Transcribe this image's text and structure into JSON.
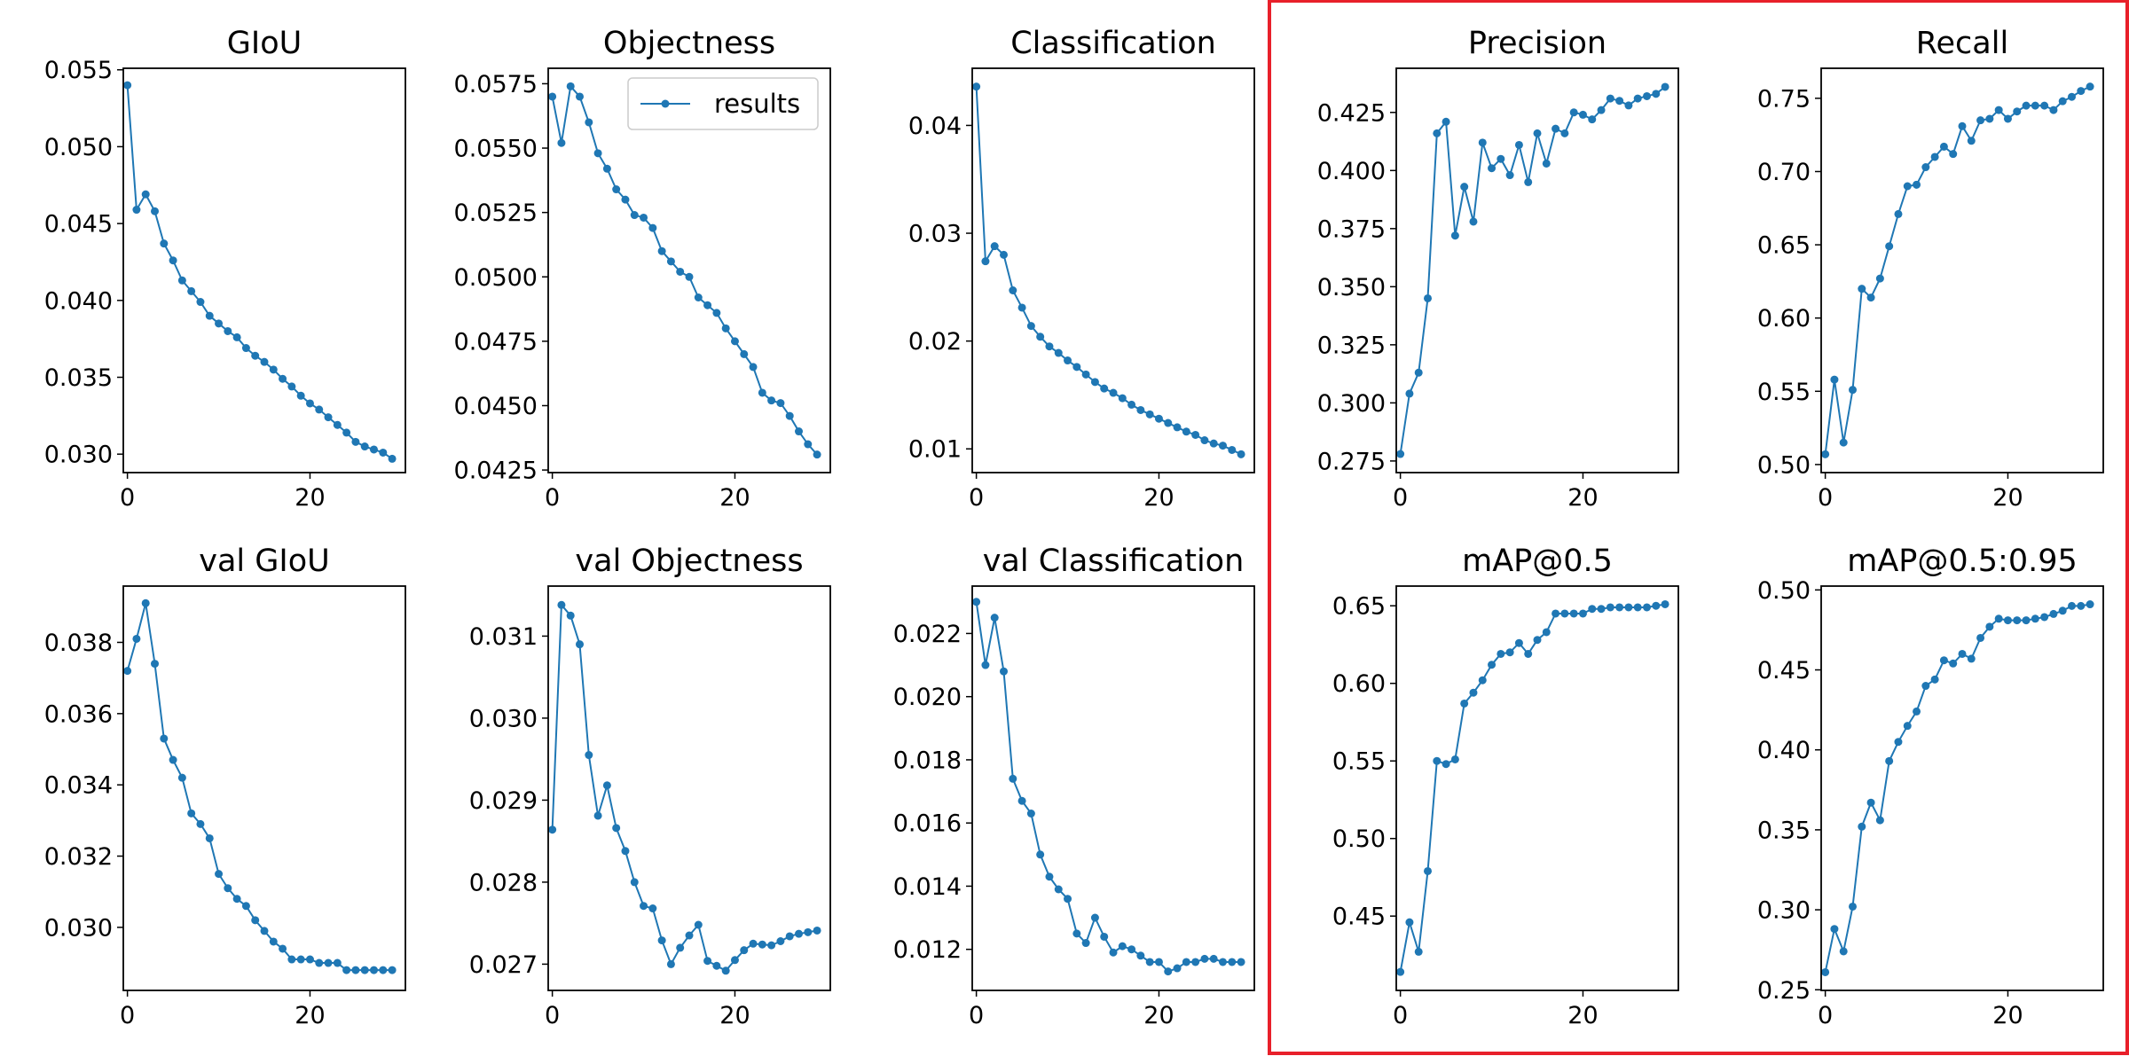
{
  "colors": {
    "series": "#1f77b4",
    "highlight": "#e8202a",
    "frame": "#000000"
  },
  "legend": {
    "label": "results",
    "location": "upper right of Objectness panel"
  },
  "highlight_box": {
    "encloses": [
      "Precision",
      "Recall",
      "mAP@0.5",
      "mAP@0.5:0.95"
    ]
  },
  "chart_data": [
    {
      "type": "line",
      "title": "GIoU",
      "x": [
        0,
        1,
        2,
        3,
        4,
        5,
        6,
        7,
        8,
        9,
        10,
        11,
        12,
        13,
        14,
        15,
        16,
        17,
        18,
        19,
        20,
        21,
        22,
        23,
        24,
        25,
        26,
        27,
        28,
        29
      ],
      "values": [
        0.054,
        0.0459,
        0.0469,
        0.0458,
        0.0437,
        0.0426,
        0.0413,
        0.0406,
        0.0399,
        0.039,
        0.0385,
        0.038,
        0.0376,
        0.0369,
        0.0364,
        0.036,
        0.0355,
        0.0349,
        0.0344,
        0.0338,
        0.0333,
        0.0329,
        0.0324,
        0.0319,
        0.0314,
        0.0308,
        0.0305,
        0.0303,
        0.0301,
        0.0297
      ],
      "xlim": [
        -0.45,
        30.45
      ],
      "ylim": [
        0.0288,
        0.0551
      ],
      "xticks": [
        0,
        20
      ],
      "xtick_labels": [
        "0",
        "20"
      ],
      "yticks": [
        0.03,
        0.035,
        0.04,
        0.045,
        0.05,
        0.055
      ],
      "ytick_labels": [
        "0.030",
        "0.035",
        "0.040",
        "0.045",
        "0.050",
        "0.055"
      ]
    },
    {
      "type": "line",
      "title": "Objectness",
      "legend": true,
      "x": [
        0,
        1,
        2,
        3,
        4,
        5,
        6,
        7,
        8,
        9,
        10,
        11,
        12,
        13,
        14,
        15,
        16,
        17,
        18,
        19,
        20,
        21,
        22,
        23,
        24,
        25,
        26,
        27,
        28,
        29
      ],
      "values": [
        0.057,
        0.0552,
        0.0574,
        0.057,
        0.056,
        0.0548,
        0.0542,
        0.0534,
        0.053,
        0.0524,
        0.0523,
        0.0519,
        0.051,
        0.0506,
        0.0502,
        0.05,
        0.0492,
        0.0489,
        0.0486,
        0.048,
        0.0475,
        0.047,
        0.0465,
        0.0455,
        0.0452,
        0.0451,
        0.0446,
        0.044,
        0.0435,
        0.0431
      ],
      "xlim": [
        -0.45,
        30.45
      ],
      "ylim": [
        0.0424,
        0.0581
      ],
      "xticks": [
        0,
        20
      ],
      "xtick_labels": [
        "0",
        "20"
      ],
      "yticks": [
        0.0425,
        0.045,
        0.0475,
        0.05,
        0.0525,
        0.055,
        0.0575
      ],
      "ytick_labels": [
        "0.0425",
        "0.0450",
        "0.0475",
        "0.0500",
        "0.0525",
        "0.0550",
        "0.0575"
      ]
    },
    {
      "type": "line",
      "title": "Classification",
      "x": [
        0,
        1,
        2,
        3,
        4,
        5,
        6,
        7,
        8,
        9,
        10,
        11,
        12,
        13,
        14,
        15,
        16,
        17,
        18,
        19,
        20,
        21,
        22,
        23,
        24,
        25,
        26,
        27,
        28,
        29
      ],
      "values": [
        0.0436,
        0.0274,
        0.0288,
        0.028,
        0.0247,
        0.0231,
        0.0214,
        0.0204,
        0.0195,
        0.0189,
        0.0182,
        0.0176,
        0.0169,
        0.0162,
        0.0156,
        0.0152,
        0.0147,
        0.0141,
        0.0136,
        0.0132,
        0.0128,
        0.0124,
        0.012,
        0.0116,
        0.0113,
        0.0108,
        0.0105,
        0.0103,
        0.0099,
        0.0095
      ],
      "xlim": [
        -0.45,
        30.45
      ],
      "ylim": [
        0.0078,
        0.0453
      ],
      "xticks": [
        0,
        20
      ],
      "xtick_labels": [
        "0",
        "20"
      ],
      "yticks": [
        0.01,
        0.02,
        0.03,
        0.04
      ],
      "ytick_labels": [
        "0.01",
        "0.02",
        "0.03",
        "0.04"
      ]
    },
    {
      "type": "line",
      "title": "Precision",
      "x": [
        0,
        1,
        2,
        3,
        4,
        5,
        6,
        7,
        8,
        9,
        10,
        11,
        12,
        13,
        14,
        15,
        16,
        17,
        18,
        19,
        20,
        21,
        22,
        23,
        24,
        25,
        26,
        27,
        28,
        29
      ],
      "values": [
        0.278,
        0.304,
        0.313,
        0.345,
        0.416,
        0.421,
        0.372,
        0.393,
        0.378,
        0.412,
        0.401,
        0.405,
        0.398,
        0.411,
        0.395,
        0.416,
        0.403,
        0.418,
        0.416,
        0.425,
        0.424,
        0.422,
        0.426,
        0.431,
        0.43,
        0.428,
        0.431,
        0.432,
        0.433,
        0.436
      ],
      "xlim": [
        -0.45,
        30.45
      ],
      "ylim": [
        0.27,
        0.444
      ],
      "xticks": [
        0,
        20
      ],
      "xtick_labels": [
        "0",
        "20"
      ],
      "yticks": [
        0.275,
        0.3,
        0.325,
        0.35,
        0.375,
        0.4,
        0.425
      ],
      "ytick_labels": [
        "0.275",
        "0.300",
        "0.325",
        "0.350",
        "0.375",
        "0.400",
        "0.425"
      ]
    },
    {
      "type": "line",
      "title": "Recall",
      "x": [
        0,
        1,
        2,
        3,
        4,
        5,
        6,
        7,
        8,
        9,
        10,
        11,
        12,
        13,
        14,
        15,
        16,
        17,
        18,
        19,
        20,
        21,
        22,
        23,
        24,
        25,
        26,
        27,
        28,
        29
      ],
      "values": [
        0.507,
        0.558,
        0.515,
        0.551,
        0.62,
        0.614,
        0.627,
        0.649,
        0.671,
        0.69,
        0.691,
        0.703,
        0.71,
        0.717,
        0.712,
        0.731,
        0.721,
        0.735,
        0.736,
        0.742,
        0.736,
        0.741,
        0.745,
        0.745,
        0.745,
        0.742,
        0.748,
        0.751,
        0.755,
        0.758
      ],
      "xlim": [
        -0.45,
        30.45
      ],
      "ylim": [
        0.4945,
        0.7705
      ],
      "xticks": [
        0,
        20
      ],
      "xtick_labels": [
        "0",
        "20"
      ],
      "yticks": [
        0.5,
        0.55,
        0.6,
        0.65,
        0.7,
        0.75
      ],
      "ytick_labels": [
        "0.50",
        "0.55",
        "0.60",
        "0.65",
        "0.70",
        "0.75"
      ]
    },
    {
      "type": "line",
      "title": "val GIoU",
      "x": [
        0,
        1,
        2,
        3,
        4,
        5,
        6,
        7,
        8,
        9,
        10,
        11,
        12,
        13,
        14,
        15,
        16,
        17,
        18,
        19,
        20,
        21,
        22,
        23,
        24,
        25,
        26,
        27,
        28,
        29
      ],
      "values": [
        0.0372,
        0.0381,
        0.0391,
        0.0374,
        0.0353,
        0.0347,
        0.0342,
        0.0332,
        0.0329,
        0.0325,
        0.0315,
        0.0311,
        0.0308,
        0.0306,
        0.0302,
        0.0299,
        0.0296,
        0.0294,
        0.0291,
        0.0291,
        0.0291,
        0.029,
        0.029,
        0.029,
        0.0288,
        0.0288,
        0.0288,
        0.0288,
        0.0288,
        0.0288
      ],
      "xlim": [
        -0.45,
        30.45
      ],
      "ylim": [
        0.02823,
        0.03958
      ],
      "xticks": [
        0,
        20
      ],
      "xtick_labels": [
        "0",
        "20"
      ],
      "yticks": [
        0.03,
        0.032,
        0.034,
        0.036,
        0.038
      ],
      "ytick_labels": [
        "0.030",
        "0.032",
        "0.034",
        "0.036",
        "0.038"
      ]
    },
    {
      "type": "line",
      "title": "val Objectness",
      "x": [
        0,
        1,
        2,
        3,
        4,
        5,
        6,
        7,
        8,
        9,
        10,
        11,
        12,
        13,
        14,
        15,
        16,
        17,
        18,
        19,
        20,
        21,
        22,
        23,
        24,
        25,
        26,
        27,
        28,
        29
      ],
      "values": [
        0.02864,
        0.03138,
        0.03125,
        0.0309,
        0.02955,
        0.02881,
        0.02918,
        0.02866,
        0.02838,
        0.028,
        0.02771,
        0.02768,
        0.02729,
        0.027,
        0.0272,
        0.02735,
        0.02748,
        0.02704,
        0.02698,
        0.02692,
        0.02705,
        0.02717,
        0.02725,
        0.02724,
        0.02723,
        0.02728,
        0.02734,
        0.02737,
        0.02739,
        0.02741
      ],
      "xlim": [
        -0.45,
        30.45
      ],
      "ylim": [
        0.02668,
        0.03161
      ],
      "xticks": [
        0,
        20
      ],
      "xtick_labels": [
        "0",
        "20"
      ],
      "yticks": [
        0.027,
        0.028,
        0.029,
        0.03,
        0.031
      ],
      "ytick_labels": [
        "0.027",
        "0.028",
        "0.029",
        "0.030",
        "0.031"
      ]
    },
    {
      "type": "line",
      "title": "val Classification",
      "x": [
        0,
        1,
        2,
        3,
        4,
        5,
        6,
        7,
        8,
        9,
        10,
        11,
        12,
        13,
        14,
        15,
        16,
        17,
        18,
        19,
        20,
        21,
        22,
        23,
        24,
        25,
        26,
        27,
        28,
        29
      ],
      "values": [
        0.023,
        0.021,
        0.0225,
        0.0208,
        0.0174,
        0.0167,
        0.0163,
        0.015,
        0.0143,
        0.0139,
        0.0136,
        0.0125,
        0.0122,
        0.013,
        0.0124,
        0.0119,
        0.0121,
        0.012,
        0.0118,
        0.0116,
        0.0116,
        0.0113,
        0.0114,
        0.0116,
        0.0116,
        0.0117,
        0.0117,
        0.0116,
        0.0116,
        0.0116
      ],
      "xlim": [
        -0.45,
        30.45
      ],
      "ylim": [
        0.0107,
        0.0235
      ],
      "xticks": [
        0,
        20
      ],
      "xtick_labels": [
        "0",
        "20"
      ],
      "yticks": [
        0.012,
        0.014,
        0.016,
        0.018,
        0.02,
        0.022
      ],
      "ytick_labels": [
        "0.012",
        "0.014",
        "0.016",
        "0.018",
        "0.020",
        "0.022"
      ]
    },
    {
      "type": "line",
      "title": "mAP@0.5",
      "x": [
        0,
        1,
        2,
        3,
        4,
        5,
        6,
        7,
        8,
        9,
        10,
        11,
        12,
        13,
        14,
        15,
        16,
        17,
        18,
        19,
        20,
        21,
        22,
        23,
        24,
        25,
        26,
        27,
        28,
        29
      ],
      "values": [
        0.414,
        0.446,
        0.427,
        0.479,
        0.55,
        0.548,
        0.551,
        0.587,
        0.594,
        0.602,
        0.612,
        0.619,
        0.62,
        0.626,
        0.619,
        0.628,
        0.633,
        0.645,
        0.645,
        0.645,
        0.645,
        0.648,
        0.648,
        0.649,
        0.649,
        0.649,
        0.649,
        0.649,
        0.65,
        0.651
      ],
      "xlim": [
        -0.45,
        30.45
      ],
      "ylim": [
        0.4021,
        0.6627
      ],
      "xticks": [
        0,
        20
      ],
      "xtick_labels": [
        "0",
        "20"
      ],
      "yticks": [
        0.45,
        0.5,
        0.55,
        0.6,
        0.65
      ],
      "ytick_labels": [
        "0.45",
        "0.50",
        "0.55",
        "0.60",
        "0.65"
      ]
    },
    {
      "type": "line",
      "title": "mAP@0.5:0.95",
      "x": [
        0,
        1,
        2,
        3,
        4,
        5,
        6,
        7,
        8,
        9,
        10,
        11,
        12,
        13,
        14,
        15,
        16,
        17,
        18,
        19,
        20,
        21,
        22,
        23,
        24,
        25,
        26,
        27,
        28,
        29
      ],
      "values": [
        0.261,
        0.288,
        0.274,
        0.302,
        0.352,
        0.367,
        0.356,
        0.393,
        0.405,
        0.415,
        0.424,
        0.44,
        0.444,
        0.456,
        0.454,
        0.46,
        0.457,
        0.47,
        0.477,
        0.482,
        0.481,
        0.481,
        0.481,
        0.482,
        0.483,
        0.485,
        0.487,
        0.49,
        0.49,
        0.491
      ],
      "xlim": [
        -0.45,
        30.45
      ],
      "ylim": [
        0.2496,
        0.5024
      ],
      "xticks": [
        0,
        20
      ],
      "xtick_labels": [
        "0",
        "20"
      ],
      "yticks": [
        0.25,
        0.3,
        0.35,
        0.4,
        0.45,
        0.5
      ],
      "ytick_labels": [
        "0.25",
        "0.30",
        "0.35",
        "0.40",
        "0.45",
        "0.50"
      ]
    }
  ]
}
